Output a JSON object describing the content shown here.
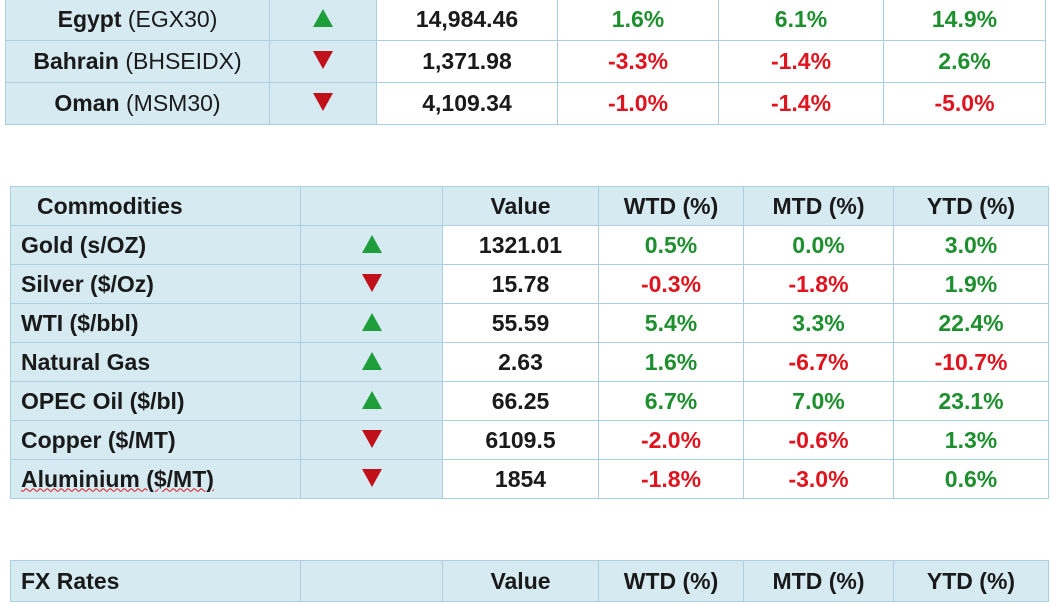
{
  "indices": [
    {
      "name": "Egypt",
      "ticker": "(EGX30)",
      "dir": "up",
      "value": "14,984.46",
      "wtd": "1.6%",
      "mtd": "6.1%",
      "ytd": "14.9%"
    },
    {
      "name": "Bahrain",
      "ticker": "(BHSEIDX)",
      "dir": "down",
      "value": "1,371.98",
      "wtd": "-3.3%",
      "mtd": "-1.4%",
      "ytd": "2.6%"
    },
    {
      "name": "Oman",
      "ticker": "(MSM30)",
      "dir": "down",
      "value": "4,109.34",
      "wtd": "-1.0%",
      "mtd": "-1.4%",
      "ytd": "-5.0%"
    }
  ],
  "commodities": {
    "header": {
      "title": "Commodities",
      "value": "Value",
      "wtd": "WTD (%)",
      "mtd": "MTD (%)",
      "ytd": "YTD (%)"
    },
    "rows": [
      {
        "name": "Gold (s/OZ)",
        "dir": "up",
        "value": "1321.01",
        "wtd": "0.5%",
        "mtd": "0.0%",
        "ytd": "3.0%"
      },
      {
        "name": "Silver ($/Oz)",
        "dir": "down",
        "value": "15.78",
        "wtd": "-0.3%",
        "mtd": "-1.8%",
        "ytd": "1.9%"
      },
      {
        "name": "WTI ($/bbl)",
        "dir": "up",
        "value": "55.59",
        "wtd": "5.4%",
        "mtd": "3.3%",
        "ytd": "22.4%"
      },
      {
        "name": "Natural Gas",
        "dir": "up",
        "value": "2.63",
        "wtd": "1.6%",
        "mtd": "-6.7%",
        "ytd": "-10.7%"
      },
      {
        "name": "OPEC Oil ($/bl)",
        "dir": "up",
        "value": "66.25",
        "wtd": "6.7%",
        "mtd": "7.0%",
        "ytd": "23.1%"
      },
      {
        "name": "Copper ($/MT)",
        "dir": "down",
        "value": "6109.5",
        "wtd": "-2.0%",
        "mtd": "-0.6%",
        "ytd": "1.3%"
      },
      {
        "name": "Aluminium ($/MT)",
        "dir": "down",
        "value": "1854",
        "wtd": "-1.8%",
        "mtd": "-3.0%",
        "ytd": "0.6%"
      }
    ]
  },
  "fx": {
    "header": {
      "title": "FX Rates",
      "value": "Value",
      "wtd": "WTD (%)",
      "mtd": "MTD (%)",
      "ytd": "YTD (%)"
    }
  },
  "colors": {
    "positive": "#1e8f2e",
    "negative": "#e0141e",
    "up_arrow": "#1e9e3a",
    "down_arrow": "#c0101a",
    "header_bg": "#d6eaf2"
  },
  "icons": {
    "up": "triangle-up-icon",
    "down": "triangle-down-icon"
  }
}
